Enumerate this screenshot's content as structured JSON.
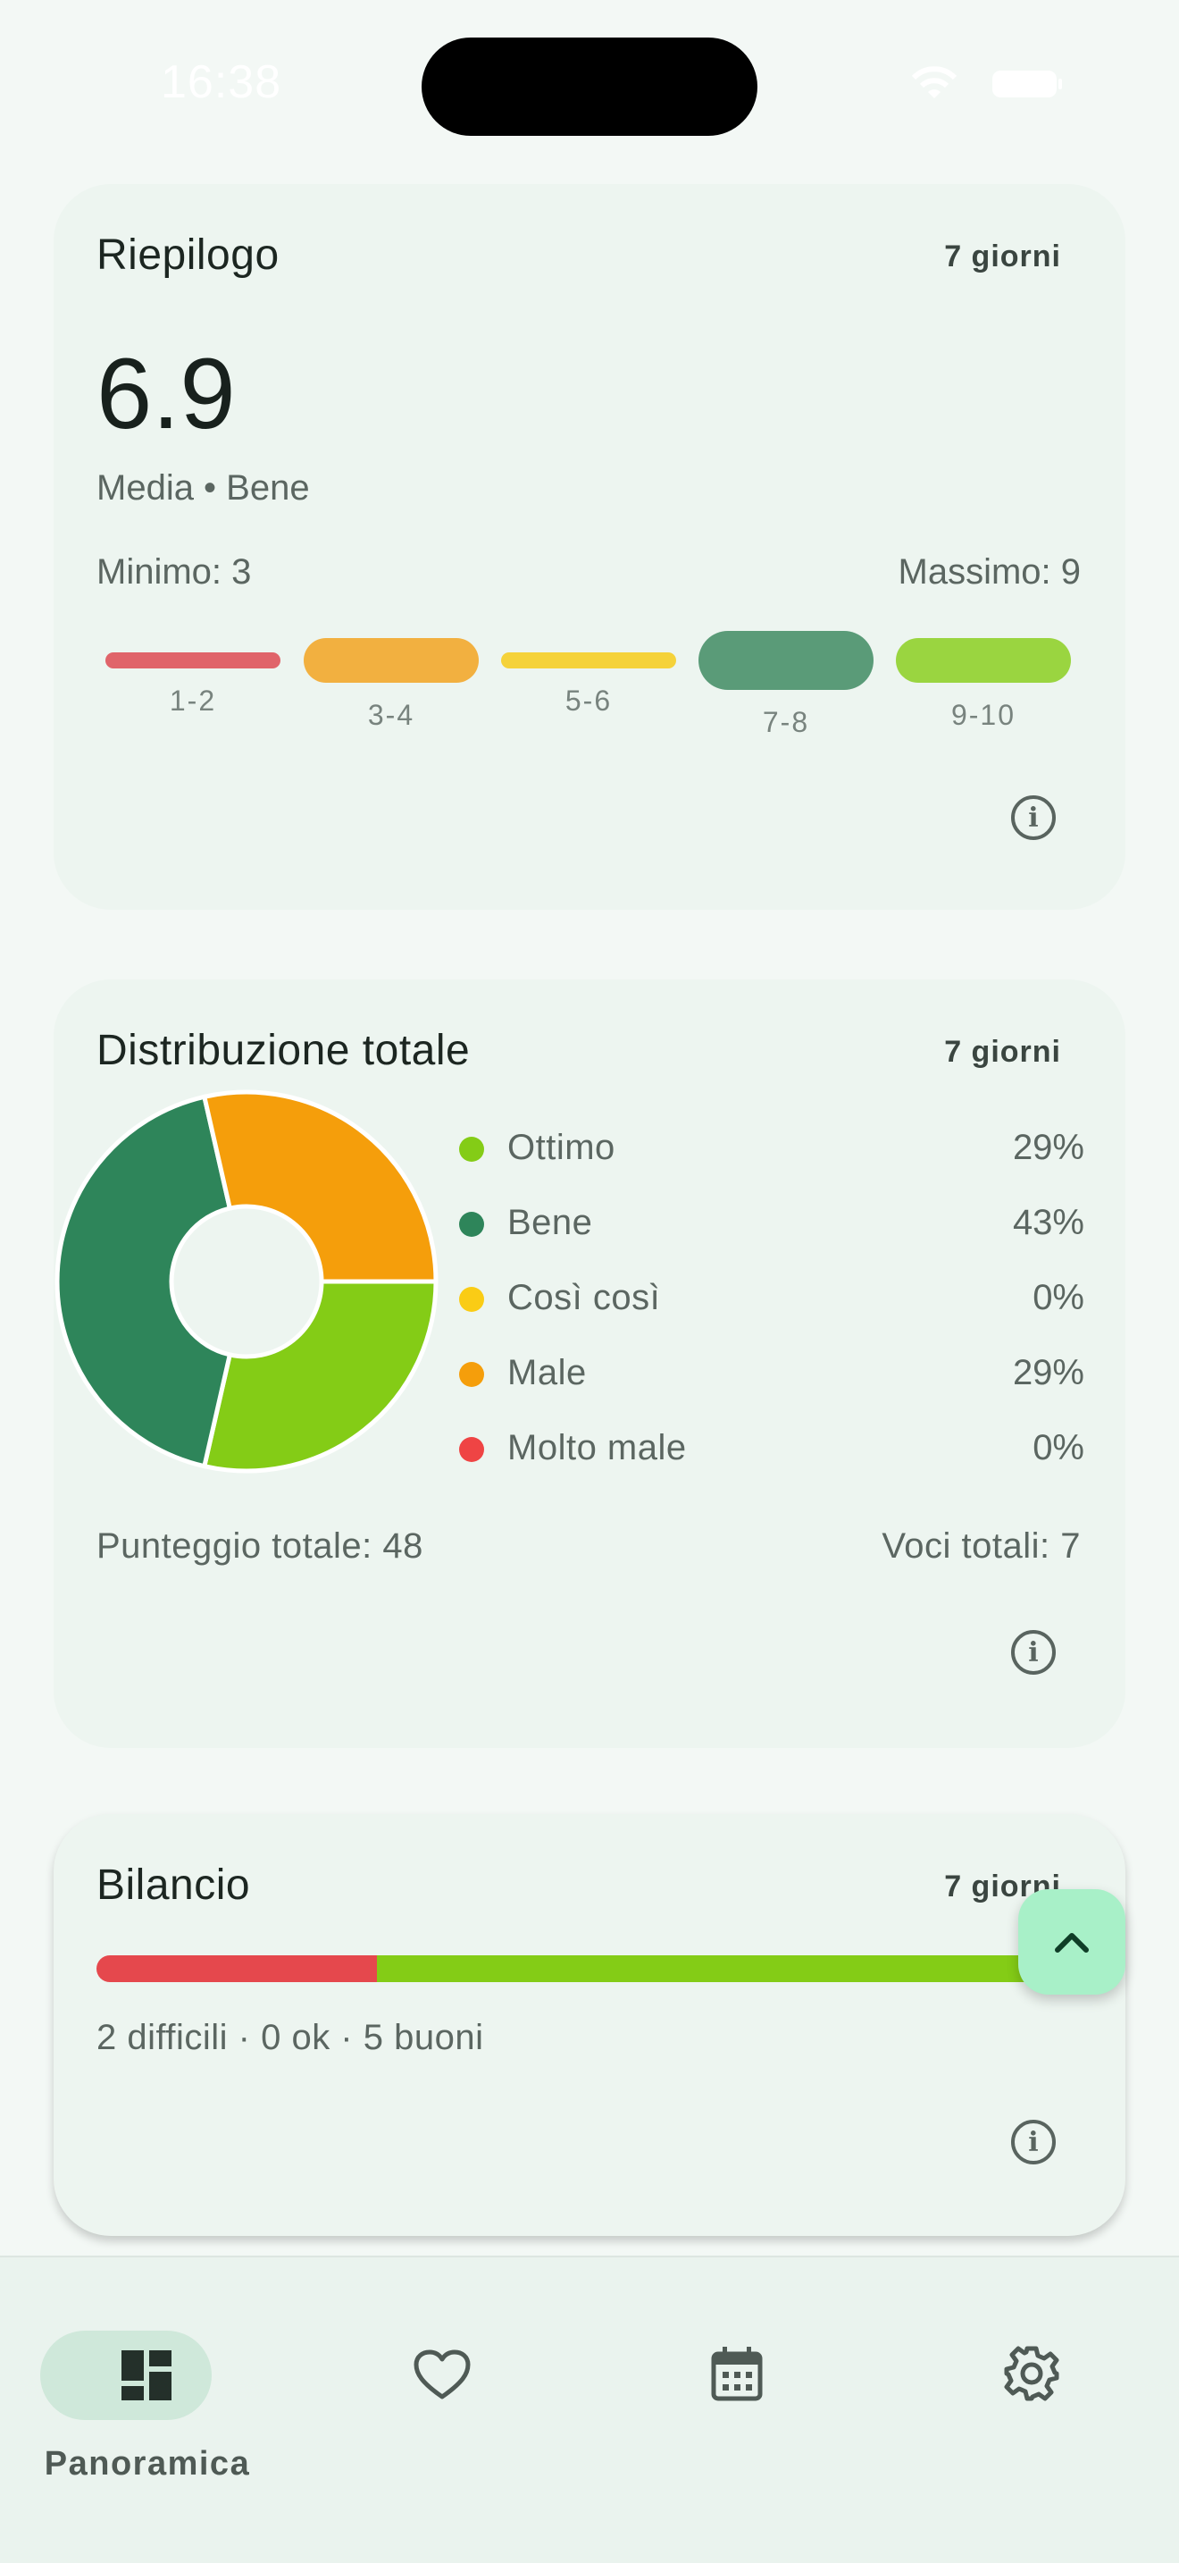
{
  "status_bar": {
    "time": "16:38"
  },
  "summary": {
    "title": "Riepilogo",
    "period": "7 giorni",
    "average": "6.9",
    "subtitle": "Media • Bene",
    "min_label": "Minimo: 3",
    "max_label": "Massimo: 9",
    "scale": [
      {
        "label": "1-2",
        "color": "#e0646a",
        "selected": false
      },
      {
        "label": "3-4",
        "color": "#f2b040",
        "selected": false
      },
      {
        "label": "5-6",
        "color": "#f5d23a",
        "selected": false
      },
      {
        "label": "7-8",
        "color": "#5a9b78",
        "selected": true
      },
      {
        "label": "9-10",
        "color": "#9ad540",
        "selected": false
      }
    ],
    "info_icon": "info-icon"
  },
  "distribution": {
    "title": "Distribuzione totale",
    "period": "7 giorni",
    "legend": [
      {
        "name": "Ottimo",
        "percent": "29%",
        "color": "#84cc16"
      },
      {
        "name": "Bene",
        "percent": "43%",
        "color": "#2e855a"
      },
      {
        "name": "Così così",
        "percent": "0%",
        "color": "#facc15"
      },
      {
        "name": "Male",
        "percent": "29%",
        "color": "#f59e0b"
      },
      {
        "name": "Molto male",
        "percent": "0%",
        "color": "#ef4444"
      }
    ],
    "total_score": "Punteggio totale: 48",
    "total_entries": "Voci totali: 7"
  },
  "chart_data": {
    "type": "pie",
    "categories": [
      "Ottimo",
      "Bene",
      "Così così",
      "Male",
      "Molto male"
    ],
    "values": [
      2,
      3,
      0,
      2,
      0
    ],
    "percentages": [
      29,
      43,
      0,
      29,
      0
    ],
    "colors": [
      "#84cc16",
      "#2e855a",
      "#facc15",
      "#f59e0b",
      "#ef4444"
    ],
    "donut": true
  },
  "balance": {
    "title": "Bilancio",
    "period": "7 giorni",
    "difficult": 2,
    "ok": 0,
    "good": 5,
    "colors": {
      "difficult": "#e5484d",
      "ok": "#facc15",
      "good": "#84cc16"
    },
    "summary_text": "2 difficili · 0 ok · 5 buoni"
  },
  "fab": {
    "icon": "chevron-up-icon"
  },
  "nav": {
    "items": [
      {
        "icon": "dashboard-icon",
        "label": "Panoramica",
        "active": true
      },
      {
        "icon": "heart-icon",
        "label": "",
        "active": false
      },
      {
        "icon": "calendar-icon",
        "label": "",
        "active": false
      },
      {
        "icon": "gear-icon",
        "label": "",
        "active": false
      }
    ]
  }
}
